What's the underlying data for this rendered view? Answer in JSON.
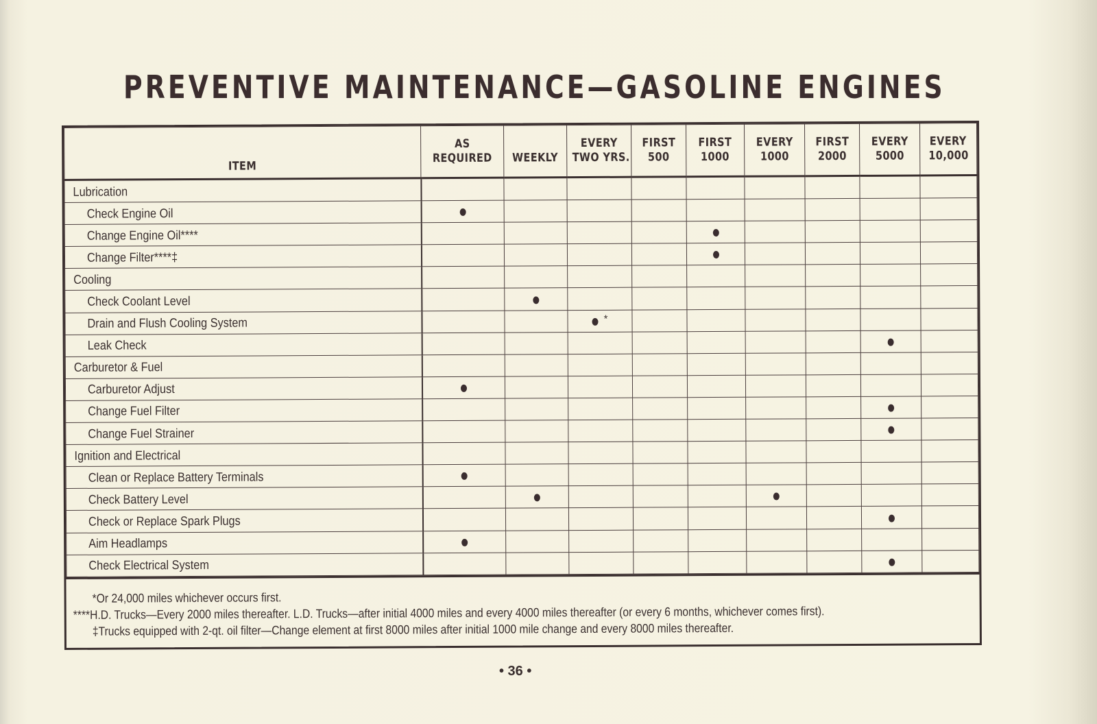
{
  "title": "PREVENTIVE MAINTENANCE—GASOLINE ENGINES",
  "table": {
    "columns": [
      {
        "key": "item",
        "label": "ITEM"
      },
      {
        "key": "as_required",
        "label": "AS REQUIRED",
        "line1": "AS",
        "line2": "REQUIRED"
      },
      {
        "key": "weekly",
        "label": "WEEKLY",
        "line1": "",
        "line2": "WEEKLY"
      },
      {
        "key": "every_two_yrs",
        "label": "EVERY TWO YRS.",
        "line1": "EVERY",
        "line2": "TWO YRS."
      },
      {
        "key": "first_500",
        "label": "FIRST 500",
        "line1": "FIRST",
        "line2": "500"
      },
      {
        "key": "first_1000",
        "label": "FIRST 1000",
        "line1": "FIRST",
        "line2": "1000"
      },
      {
        "key": "every_1000",
        "label": "EVERY 1000",
        "line1": "EVERY",
        "line2": "1000"
      },
      {
        "key": "first_2000",
        "label": "FIRST 2000",
        "line1": "FIRST",
        "line2": "2000"
      },
      {
        "key": "every_5000",
        "label": "EVERY 5000",
        "line1": "EVERY",
        "line2": "5000"
      },
      {
        "key": "every_10000",
        "label": "EVERY 10,000",
        "line1": "EVERY",
        "line2": "10,000"
      }
    ],
    "rows": [
      {
        "type": "category",
        "label": "Lubrication",
        "marks": []
      },
      {
        "type": "item",
        "label": "Check Engine Oil",
        "marks": [
          "as_required"
        ]
      },
      {
        "type": "item",
        "label": "Change Engine Oil****",
        "marks": [
          "first_1000"
        ]
      },
      {
        "type": "item",
        "label": "Change Filter****‡",
        "marks": [
          "first_1000"
        ]
      },
      {
        "type": "category",
        "label": "Cooling",
        "marks": []
      },
      {
        "type": "item",
        "label": "Check Coolant Level",
        "marks": [
          "weekly"
        ]
      },
      {
        "type": "item",
        "label": "Drain and Flush Cooling System",
        "marks": [
          "every_two_yrs"
        ],
        "note_mark": "*"
      },
      {
        "type": "item",
        "label": "Leak Check",
        "marks": [
          "every_5000"
        ]
      },
      {
        "type": "category",
        "label": "Carburetor & Fuel",
        "marks": []
      },
      {
        "type": "item",
        "label": "Carburetor Adjust",
        "marks": [
          "as_required"
        ]
      },
      {
        "type": "item",
        "label": "Change Fuel Filter",
        "marks": [
          "every_5000"
        ]
      },
      {
        "type": "item",
        "label": "Change Fuel Strainer",
        "marks": [
          "every_5000"
        ]
      },
      {
        "type": "category",
        "label": "Ignition and Electrical",
        "marks": []
      },
      {
        "type": "item",
        "label": "Clean or Replace Battery Terminals",
        "marks": [
          "as_required"
        ]
      },
      {
        "type": "item",
        "label": "Check Battery Level",
        "marks": [
          "weekly",
          "every_1000"
        ]
      },
      {
        "type": "item",
        "label": "Check or Replace Spark Plugs",
        "marks": [
          "every_5000"
        ]
      },
      {
        "type": "item",
        "label": "Aim Headlamps",
        "marks": [
          "as_required"
        ]
      },
      {
        "type": "item",
        "label": "Check Electrical System",
        "marks": [
          "every_5000"
        ]
      }
    ]
  },
  "footnotes": [
    "*Or 24,000 miles whichever occurs first.",
    "****H.D. Trucks—Every 2000 miles thereafter. L.D. Trucks—after initial 4000 miles and every 4000 miles thereafter (or every 6 months, whichever comes first).",
    "‡Trucks equipped with 2-qt. oil filter—Change element at first 8000 miles after initial 1000 mile change and every 8000 miles thereafter."
  ],
  "page_number": "• 36 •"
}
